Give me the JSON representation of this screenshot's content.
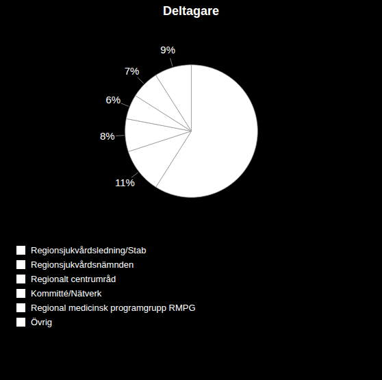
{
  "chart_data": {
    "type": "pie",
    "title": "Deltagare",
    "categories": [
      "Regionsjukvårdsledning/Stab",
      "Regionsjukvårdsnämnden",
      "Regionalt centrumråd",
      "Kommitté/Nätverk",
      "Regional medicinsk programgrupp RMPG",
      "Övrig"
    ],
    "values": [
      59,
      11,
      8,
      6,
      7,
      9
    ],
    "value_labels": [
      null,
      "11%",
      "8%",
      "6%",
      "7%",
      "9%"
    ],
    "colors": [
      "#ffffff",
      "#ffffff",
      "#ffffff",
      "#ffffff",
      "#ffffff",
      "#ffffff"
    ],
    "data_labels": true,
    "legend": "bottom"
  }
}
